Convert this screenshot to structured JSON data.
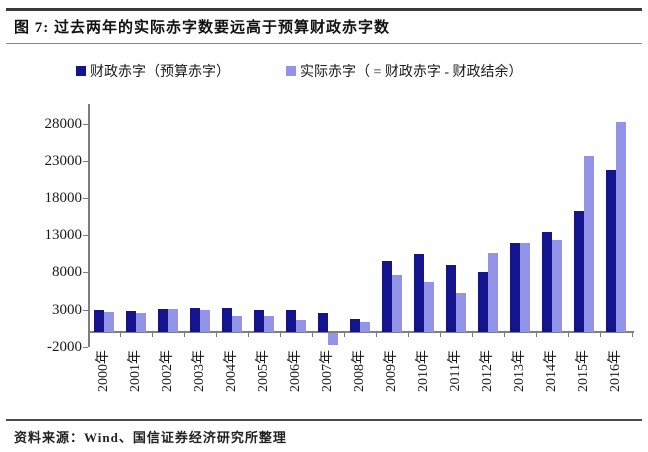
{
  "header": {
    "title": "图 7: 过去两年的实际赤字数要远高于预算财政赤字数"
  },
  "legend": [
    {
      "label": "财政赤字（预算赤字）",
      "color": "#14148C"
    },
    {
      "label": "实际赤字（ = 财政赤字 - 财政结余）",
      "color": "#9393E8"
    }
  ],
  "footer": {
    "source": "资料来源：Wind、国信证券经济研究所整理"
  },
  "chart_data": {
    "type": "bar",
    "title": "过去两年的实际赤字数要远高于预算财政赤字数",
    "categories": [
      "2000年",
      "2001年",
      "2002年",
      "2003年",
      "2004年",
      "2005年",
      "2006年",
      "2007年",
      "2008年",
      "2009年",
      "2010年",
      "2011年",
      "2012年",
      "2013年",
      "2014年",
      "2015年",
      "2016年"
    ],
    "series": [
      {
        "name": "财政赤字（预算赤字）",
        "color": "#14148C",
        "values": [
          2900,
          2800,
          3100,
          3200,
          3200,
          3000,
          3000,
          2600,
          1800,
          9500,
          10500,
          9000,
          8000,
          12000,
          13500,
          16200,
          21800
        ]
      },
      {
        "name": "实际赤字（ = 财政赤字 - 财政结余）",
        "color": "#9393E8",
        "values": [
          2700,
          2600,
          3150,
          2900,
          2100,
          2200,
          1600,
          -1600,
          1300,
          7600,
          6700,
          5300,
          10600,
          12000,
          12300,
          23600,
          28200
        ]
      }
    ],
    "xlabel": "",
    "ylabel": "",
    "y_ticks": [
      28000,
      23000,
      18000,
      13000,
      8000,
      3000,
      -2000
    ],
    "ylim": [
      -2000,
      30500
    ],
    "grid": false,
    "legend_position": "top"
  }
}
